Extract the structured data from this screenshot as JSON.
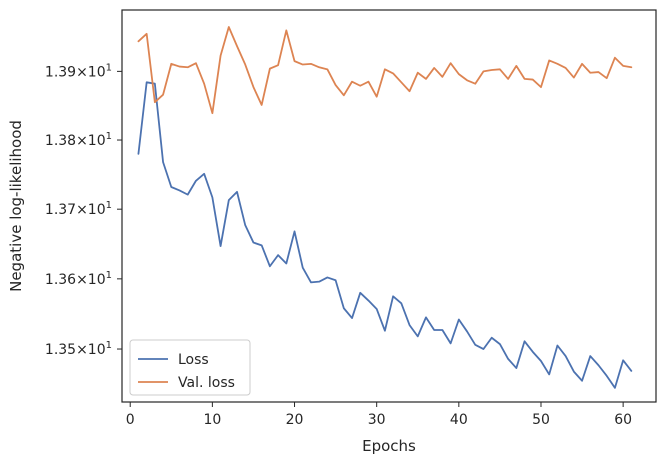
{
  "chart_data": {
    "type": "line",
    "title": "",
    "xlabel": "Epochs",
    "ylabel": "Negative log-likelihood",
    "xlim": [
      -1,
      64
    ],
    "ylim": [
      13.425,
      13.99
    ],
    "yscale": "log",
    "x_ticks": [
      0,
      10,
      20,
      30,
      40,
      50,
      60
    ],
    "x_tick_labels": [
      "0",
      "10",
      "20",
      "30",
      "40",
      "50",
      "60"
    ],
    "y_ticks": [
      13.5,
      13.6,
      13.7,
      13.8,
      13.9
    ],
    "y_tick_labels": [
      {
        "mantissa": "1.35",
        "base": "10",
        "exp": "1"
      },
      {
        "mantissa": "1.36",
        "base": "10",
        "exp": "1"
      },
      {
        "mantissa": "1.37",
        "base": "10",
        "exp": "1"
      },
      {
        "mantissa": "1.38",
        "base": "10",
        "exp": "1"
      },
      {
        "mantissa": "1.39",
        "base": "10",
        "exp": "1"
      }
    ],
    "grid": false,
    "legend_position": "lower-left",
    "x": [
      1,
      2,
      3,
      4,
      5,
      6,
      7,
      8,
      9,
      10,
      11,
      12,
      13,
      14,
      15,
      16,
      17,
      18,
      19,
      20,
      21,
      22,
      23,
      24,
      25,
      26,
      27,
      28,
      29,
      30,
      31,
      32,
      33,
      34,
      35,
      36,
      37,
      38,
      39,
      40,
      41,
      42,
      43,
      44,
      45,
      46,
      47,
      48,
      49,
      50,
      51,
      52,
      53,
      54,
      55,
      56,
      57,
      58,
      59,
      60,
      61
    ],
    "series": [
      {
        "name": "Loss",
        "color": "#4c72b0",
        "values": [
          13.78,
          13.884,
          13.882,
          13.768,
          13.732,
          13.727,
          13.721,
          13.741,
          13.751,
          13.717,
          13.647,
          13.713,
          13.725,
          13.677,
          13.652,
          13.648,
          13.618,
          13.634,
          13.622,
          13.668,
          13.616,
          13.595,
          13.596,
          13.602,
          13.598,
          13.558,
          13.544,
          13.58,
          13.569,
          13.557,
          13.526,
          13.575,
          13.565,
          13.534,
          13.518,
          13.545,
          13.527,
          13.527,
          13.508,
          13.542,
          13.525,
          13.506,
          13.5,
          13.516,
          13.507,
          13.486,
          13.473,
          13.511,
          13.496,
          13.483,
          13.464,
          13.505,
          13.49,
          13.468,
          13.455,
          13.49,
          13.477,
          13.462,
          13.445,
          13.484,
          13.469
        ]
      },
      {
        "name": "Val. loss",
        "color": "#dd8452",
        "values": [
          13.944,
          13.955,
          13.855,
          13.866,
          13.911,
          13.907,
          13.906,
          13.912,
          13.882,
          13.839,
          13.923,
          13.965,
          13.937,
          13.91,
          13.877,
          13.851,
          13.904,
          13.909,
          13.96,
          13.915,
          13.91,
          13.911,
          13.906,
          13.903,
          13.88,
          13.865,
          13.885,
          13.879,
          13.885,
          13.863,
          13.903,
          13.897,
          13.884,
          13.871,
          13.898,
          13.889,
          13.905,
          13.892,
          13.912,
          13.896,
          13.887,
          13.882,
          13.9,
          13.902,
          13.903,
          13.889,
          13.908,
          13.889,
          13.888,
          13.877,
          13.916,
          13.911,
          13.905,
          13.891,
          13.911,
          13.898,
          13.899,
          13.89,
          13.92,
          13.908,
          13.906
        ]
      }
    ]
  }
}
